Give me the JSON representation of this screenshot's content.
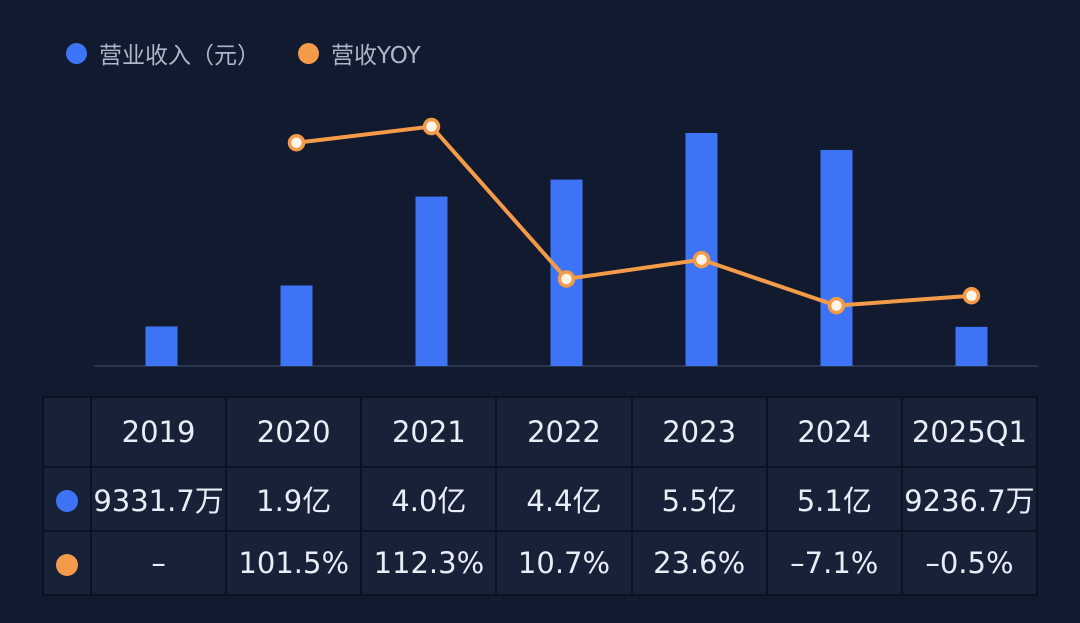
{
  "colors": {
    "revenue": "#3d74f5",
    "yoy": "#f39b49",
    "background": "#111a2e"
  },
  "legend": {
    "revenue_label": "营业收入（元）",
    "yoy_label": "营收YOY"
  },
  "chart_data": {
    "type": "bar+line",
    "categories": [
      "2019",
      "2020",
      "2021",
      "2022",
      "2023",
      "2024",
      "2025Q1"
    ],
    "series": [
      {
        "name": "营业收入（元）",
        "type": "bar",
        "values": [
          93317000,
          190000000,
          400000000,
          440000000,
          550000000,
          510000000,
          92367000
        ],
        "display": [
          "9331.7万",
          "1.9亿",
          "4.0亿",
          "4.4亿",
          "5.5亿",
          "5.1亿",
          "9236.7万"
        ]
      },
      {
        "name": "营收YOY",
        "type": "line",
        "values": [
          null,
          101.5,
          112.3,
          10.7,
          23.6,
          -7.1,
          -0.5
        ],
        "display": [
          "–",
          "101.5%",
          "112.3%",
          "10.7%",
          "23.6%",
          "–7.1%",
          "–0.5%"
        ]
      }
    ],
    "grid": false,
    "legend_position": "top-left"
  }
}
